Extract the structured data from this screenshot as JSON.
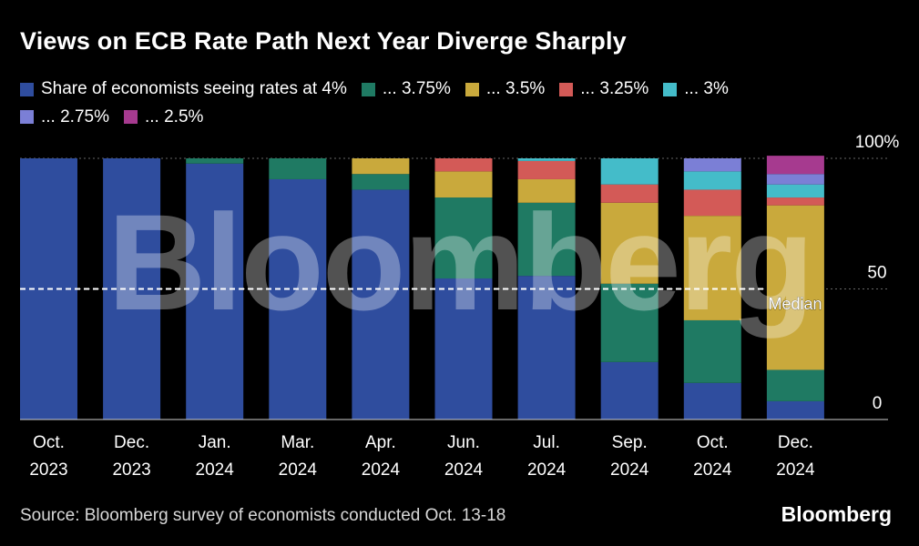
{
  "title": "Views on ECB Rate Path Next Year Diverge Sharply",
  "source": "Source: Bloomberg survey of economists conducted Oct. 13-18",
  "brand": "Bloomberg",
  "watermark": "Bloomberg",
  "median_label": "Median",
  "colors": {
    "background": "#000000",
    "grid": "#666666",
    "median_line": "#ffffff"
  },
  "chart_data": {
    "type": "bar",
    "stacked": true,
    "categories": [
      [
        "Oct.",
        "2023"
      ],
      [
        "Dec.",
        "2023"
      ],
      [
        "Jan.",
        "2024"
      ],
      [
        "Mar.",
        "2024"
      ],
      [
        "Apr.",
        "2024"
      ],
      [
        "Jun.",
        "2024"
      ],
      [
        "Jul.",
        "2024"
      ],
      [
        "Sep.",
        "2024"
      ],
      [
        "Oct.",
        "2024"
      ],
      [
        "Dec.",
        "2024"
      ]
    ],
    "ylim": [
      0,
      100
    ],
    "yticks": [
      {
        "value": 0,
        "label": "0"
      },
      {
        "value": 50,
        "label": "50"
      },
      {
        "value": 100,
        "label": "100%"
      }
    ],
    "median_value": 50,
    "legend_position": "top",
    "series": [
      {
        "name": "Share of economists seeing rates at 4%",
        "color": "#2f4d9e",
        "values": [
          100,
          100,
          98,
          92,
          88,
          54,
          55,
          22,
          14,
          7
        ]
      },
      {
        "name": "... 3.75%",
        "color": "#1f7a63",
        "values": [
          0,
          0,
          2,
          8,
          6,
          31,
          28,
          30,
          24,
          12
        ]
      },
      {
        "name": "... 3.5%",
        "color": "#c9a93c",
        "values": [
          0,
          0,
          0,
          0,
          6,
          10,
          9,
          31,
          40,
          63
        ]
      },
      {
        "name": "... 3.25%",
        "color": "#d35a57",
        "values": [
          0,
          0,
          0,
          0,
          0,
          5,
          7,
          7,
          10,
          3
        ]
      },
      {
        "name": "... 3%",
        "color": "#44bcc9",
        "values": [
          0,
          0,
          0,
          0,
          0,
          0,
          1,
          10,
          7,
          5
        ]
      },
      {
        "name": "... 2.75%",
        "color": "#7b7fd6",
        "values": [
          0,
          0,
          0,
          0,
          0,
          0,
          0,
          0,
          5,
          4
        ]
      },
      {
        "name": "... 2.5%",
        "color": "#a63a8f",
        "values": [
          0,
          0,
          0,
          0,
          0,
          0,
          0,
          0,
          0,
          7
        ]
      }
    ]
  }
}
